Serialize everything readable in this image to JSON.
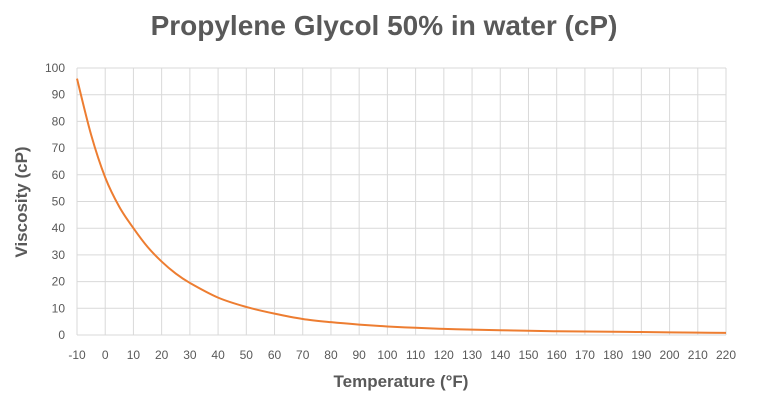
{
  "chart_data": {
    "type": "line",
    "title": "Propylene Glycol 50% in water (cP)",
    "xlabel": "Temperature (°F)",
    "ylabel": "Viscosity (cP)",
    "xlim": [
      -10,
      220
    ],
    "ylim": [
      0,
      100
    ],
    "x_ticks": [
      -10,
      0,
      10,
      20,
      30,
      40,
      50,
      60,
      70,
      80,
      90,
      100,
      110,
      120,
      130,
      140,
      150,
      160,
      170,
      180,
      190,
      200,
      210,
      220
    ],
    "y_ticks": [
      0,
      10,
      20,
      30,
      40,
      50,
      60,
      70,
      80,
      90,
      100
    ],
    "grid": true,
    "series": [
      {
        "name": "Propylene Glycol 50%",
        "color": "#ed7d31",
        "x": [
          -10,
          -5,
          0,
          5,
          10,
          15,
          20,
          25,
          30,
          40,
          50,
          60,
          70,
          80,
          90,
          100,
          110,
          120,
          130,
          140,
          150,
          160,
          170,
          180,
          190,
          200,
          210,
          220
        ],
        "y": [
          96,
          75,
          59,
          48,
          40,
          33,
          27.5,
          23,
          19.5,
          14,
          10.5,
          8,
          6,
          4.8,
          3.9,
          3.2,
          2.7,
          2.3,
          2.0,
          1.8,
          1.6,
          1.4,
          1.3,
          1.2,
          1.1,
          1.0,
          0.9,
          0.8
        ]
      }
    ]
  }
}
